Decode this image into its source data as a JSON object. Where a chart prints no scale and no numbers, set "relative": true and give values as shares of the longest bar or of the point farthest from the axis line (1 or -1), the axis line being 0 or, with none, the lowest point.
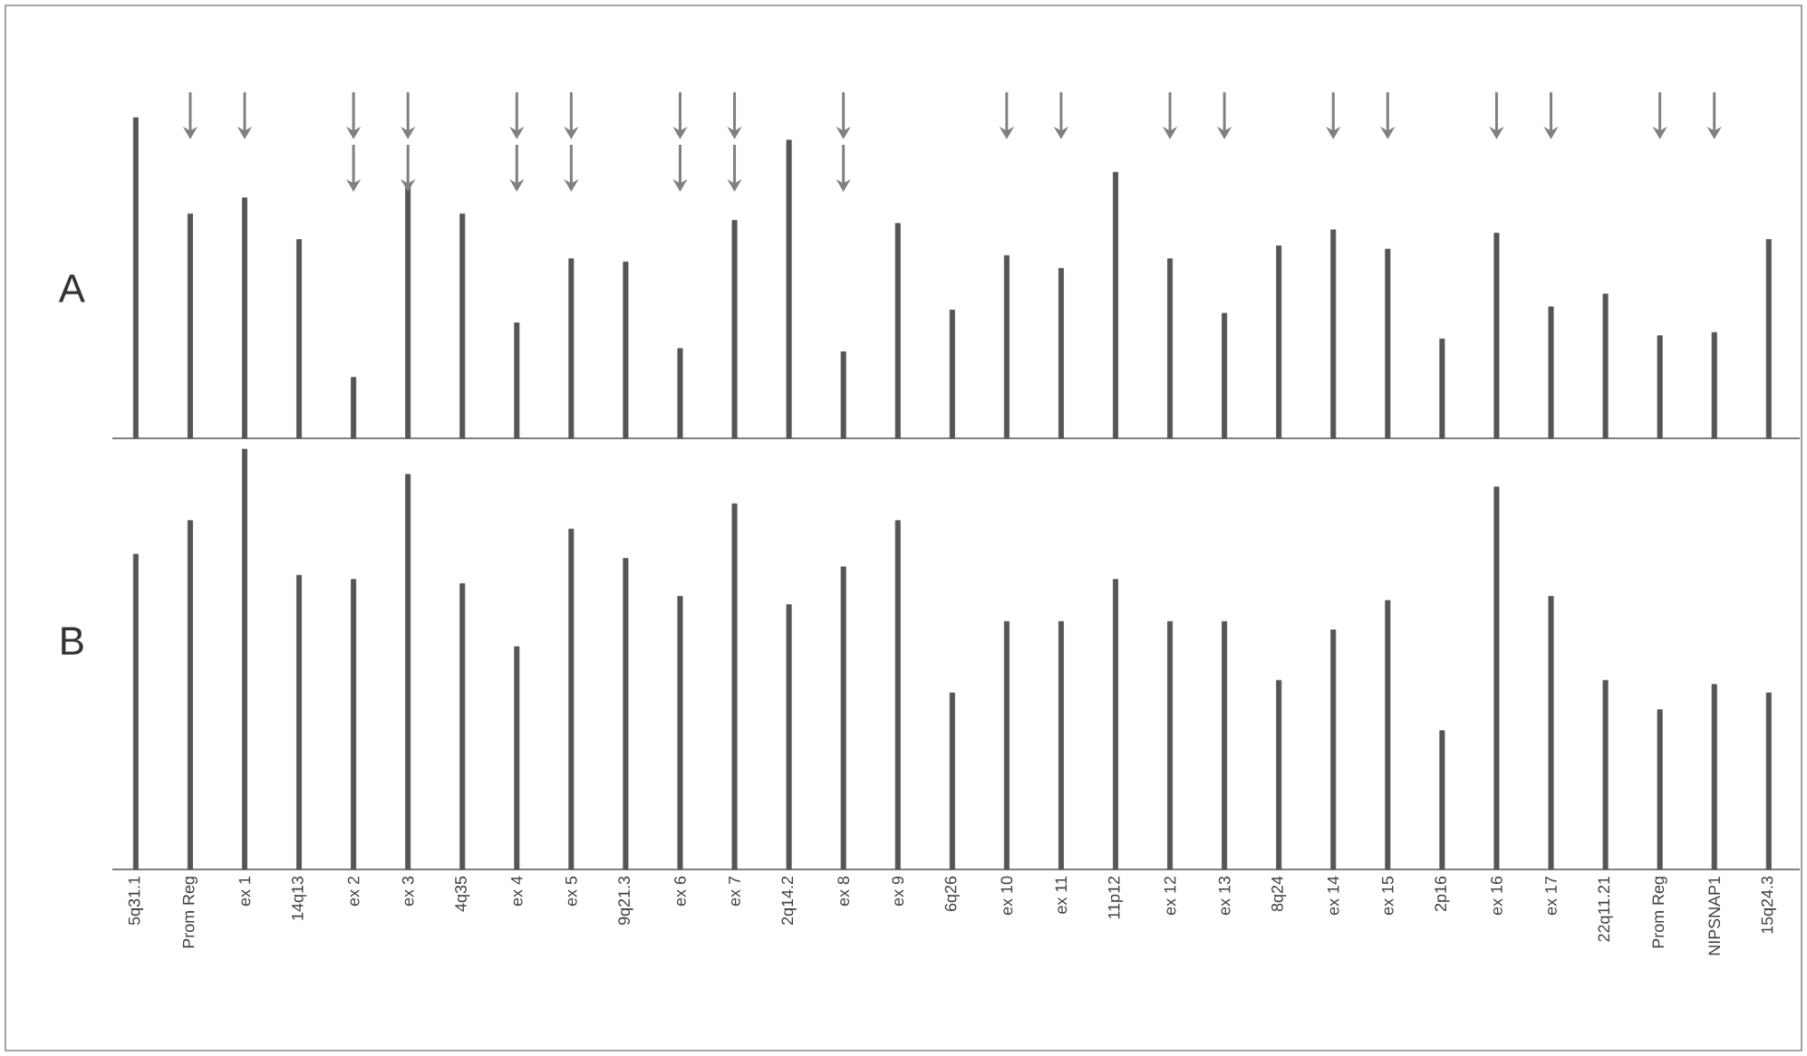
{
  "chart_data": [
    {
      "type": "bar",
      "title": "A",
      "categories": [
        null,
        null,
        null,
        null,
        null,
        null,
        null,
        null,
        null,
        null,
        null,
        null,
        null,
        null,
        null,
        null,
        null,
        null,
        null,
        null,
        null,
        null,
        null,
        null,
        null,
        null,
        null,
        null,
        null,
        null,
        null
      ],
      "values": [
        1,
        0.7,
        0.75,
        0.62,
        0.19,
        0.79,
        0.7,
        0.36,
        0.56,
        0.55,
        0.28,
        0.68,
        0.93,
        0.27,
        0.67,
        0.4,
        0.57,
        0.53,
        0.83,
        0.56,
        0.39,
        0.6,
        0.65,
        0.59,
        0.31,
        0.64,
        0.41,
        0.45,
        0.32,
        0.33,
        0.62
      ],
      "color": "#555555",
      "relative": true,
      "tick_labels": false
    },
    {
      "type": "bar",
      "title": "B",
      "categories": [
        "5q31.1",
        "Prom Reg",
        "ex 1",
        "14q13",
        "ex 2",
        "ex 3",
        "4q35",
        "ex 4",
        "ex 5",
        "9q21.3",
        "ex 6",
        "ex 7",
        "2q14.2",
        "ex 8",
        "ex 9",
        "6q26",
        "ex 10",
        "ex 11",
        "11p12",
        "ex 12",
        "ex 13",
        "8q24",
        "ex 14",
        "ex 15",
        "2p16",
        "ex 16",
        "ex 17",
        "22q11.21",
        "Prom Reg",
        "NIPSNAP1",
        "15q24.3"
      ],
      "values": [
        0.75,
        0.83,
        1,
        0.7,
        0.69,
        0.94,
        0.68,
        0.53,
        0.81,
        0.74,
        0.65,
        0.87,
        0.63,
        0.72,
        0.83,
        0.42,
        0.59,
        0.59,
        0.69,
        0.59,
        0.59,
        0.45,
        0.57,
        0.64,
        0.33,
        0.91,
        0.65,
        0.45,
        0.38,
        0.44,
        0.42
      ],
      "color": "#555555",
      "relative": true,
      "tick_labels": "x"
    }
  ]
}
